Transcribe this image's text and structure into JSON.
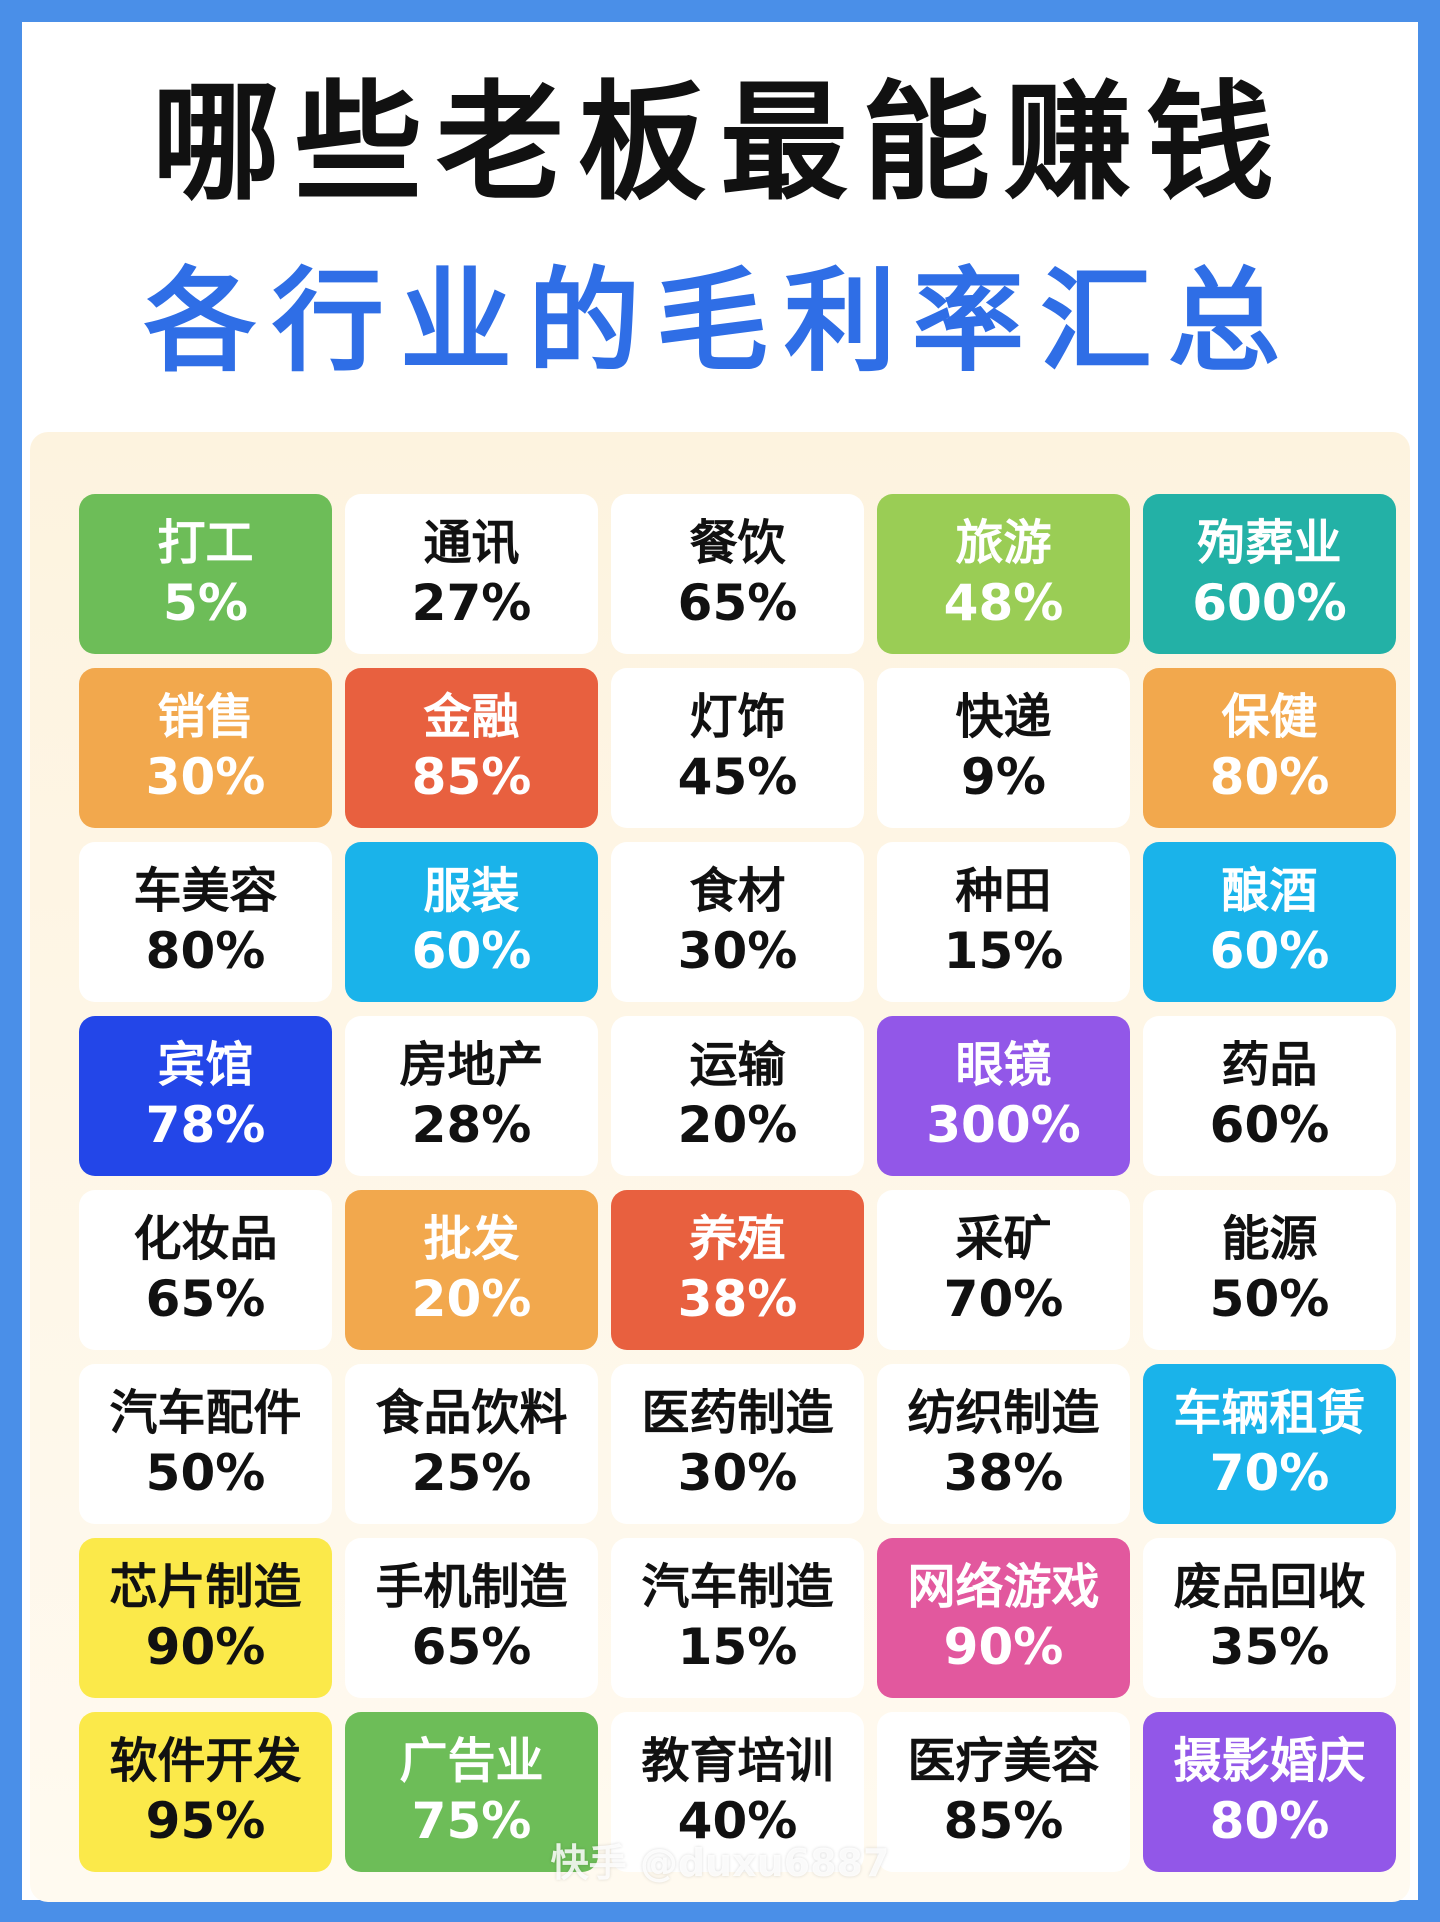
{
  "header": {
    "title": "哪些老板最能赚钱",
    "subtitle": "各行业的毛利率汇总"
  },
  "cells": [
    {
      "name": "打工",
      "pct": "5%",
      "color": "#6dbd58"
    },
    {
      "name": "通讯",
      "pct": "27%",
      "color": "#ffffff"
    },
    {
      "name": "餐饮",
      "pct": "65%",
      "color": "#ffffff"
    },
    {
      "name": "旅游",
      "pct": "48%",
      "color": "#9acd55"
    },
    {
      "name": "殉葬业",
      "pct": "600%",
      "color": "#23b1a6"
    },
    {
      "name": "销售",
      "pct": "30%",
      "color": "#f2a84d"
    },
    {
      "name": "金融",
      "pct": "85%",
      "color": "#e8603f"
    },
    {
      "name": "灯饰",
      "pct": "45%",
      "color": "#ffffff"
    },
    {
      "name": "快递",
      "pct": "9%",
      "color": "#ffffff"
    },
    {
      "name": "保健",
      "pct": "80%",
      "color": "#f2a84d"
    },
    {
      "name": "车美容",
      "pct": "80%",
      "color": "#ffffff"
    },
    {
      "name": "服装",
      "pct": "60%",
      "color": "#1ab3ea"
    },
    {
      "name": "食材",
      "pct": "30%",
      "color": "#ffffff"
    },
    {
      "name": "种田",
      "pct": "15%",
      "color": "#ffffff"
    },
    {
      "name": "酿酒",
      "pct": "60%",
      "color": "#1ab3ea"
    },
    {
      "name": "宾馆",
      "pct": "78%",
      "color": "#2346e8"
    },
    {
      "name": "房地产",
      "pct": "28%",
      "color": "#ffffff"
    },
    {
      "name": "运输",
      "pct": "20%",
      "color": "#ffffff"
    },
    {
      "name": "眼镜",
      "pct": "300%",
      "color": "#9257e8"
    },
    {
      "name": "药品",
      "pct": "60%",
      "color": "#ffffff"
    },
    {
      "name": "化妆品",
      "pct": "65%",
      "color": "#ffffff"
    },
    {
      "name": "批发",
      "pct": "20%",
      "color": "#f2a84d"
    },
    {
      "name": "养殖",
      "pct": "38%",
      "color": "#e8603f"
    },
    {
      "name": "采矿",
      "pct": "70%",
      "color": "#ffffff"
    },
    {
      "name": "能源",
      "pct": "50%",
      "color": "#ffffff"
    },
    {
      "name": "汽车配件",
      "pct": "50%",
      "color": "#ffffff"
    },
    {
      "name": "食品饮料",
      "pct": "25%",
      "color": "#ffffff"
    },
    {
      "name": "医药制造",
      "pct": "30%",
      "color": "#ffffff"
    },
    {
      "name": "纺织制造",
      "pct": "38%",
      "color": "#ffffff"
    },
    {
      "name": "车辆租赁",
      "pct": "70%",
      "color": "#1ab3ea"
    },
    {
      "name": "芯片制造",
      "pct": "90%",
      "color": "#fbe94a"
    },
    {
      "name": "手机制造",
      "pct": "65%",
      "color": "#ffffff"
    },
    {
      "name": "汽车制造",
      "pct": "15%",
      "color": "#ffffff"
    },
    {
      "name": "网络游戏",
      "pct": "90%",
      "color": "#e2589e"
    },
    {
      "name": "废品回收",
      "pct": "35%",
      "color": "#ffffff"
    },
    {
      "name": "软件开发",
      "pct": "95%",
      "color": "#fbe94a"
    },
    {
      "name": "广告业",
      "pct": "75%",
      "color": "#6dbd58"
    },
    {
      "name": "教育培训",
      "pct": "40%",
      "color": "#ffffff"
    },
    {
      "name": "医疗美容",
      "pct": "85%",
      "color": "#ffffff"
    },
    {
      "name": "摄影婚庆",
      "pct": "80%",
      "color": "#9257e8"
    }
  ],
  "watermark": "快手 @duxu6887"
}
